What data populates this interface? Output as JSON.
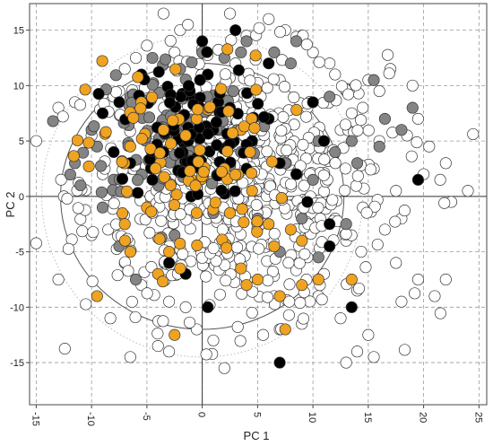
{
  "chart_data": {
    "type": "scatter",
    "title": "",
    "xlabel": "PC 1",
    "ylabel": "PC 2",
    "xlim": [
      -15.6,
      25.7
    ],
    "ylim": [
      -18.8,
      17.4
    ],
    "x_ticks": [
      -15,
      -10,
      -5,
      0,
      5,
      10,
      15,
      20,
      25
    ],
    "y_ticks": [
      -15,
      -10,
      -5,
      0,
      5,
      10,
      15
    ],
    "x_tick_labels": [
      "-15",
      "-10",
      "-5",
      "0",
      "5",
      "10",
      "15",
      "20",
      "25"
    ],
    "y_tick_labels": [
      "-15",
      "-10",
      "-5",
      "0",
      "5",
      "10",
      "15"
    ],
    "grid": true,
    "grid_style": "dashed",
    "reference_lines": {
      "x": 0,
      "y": 0
    },
    "confidence_ellipses": [
      {
        "center": [
          0,
          0
        ],
        "rx": 12.8,
        "ry": 12.0,
        "style": "solid",
        "color": "#555555"
      },
      {
        "center": [
          0,
          0
        ],
        "rx": 14.5,
        "ry": 14.5,
        "style": "dotted",
        "color": "#bbbbbb"
      }
    ],
    "series": [
      {
        "color": "#ffffff",
        "generator": "cloud",
        "count": 700,
        "center": [
          3.0,
          1.0
        ],
        "spread": [
          6.8,
          5.8
        ],
        "points": [
          [
            24.0,
            0.5
          ],
          [
            22.5,
            -0.5
          ],
          [
            21.5,
            1.5
          ],
          [
            20.5,
            4.5
          ],
          [
            20.0,
            2.0
          ],
          [
            22.0,
            3.0
          ],
          [
            19.5,
            7.0
          ],
          [
            18.5,
            5.5
          ],
          [
            19.5,
            -7.5
          ],
          [
            22.0,
            -7.5
          ],
          [
            21.0,
            -9.0
          ],
          [
            18.0,
            -9.5
          ],
          [
            17.5,
            -6.0
          ],
          [
            15.0,
            -12.5
          ],
          [
            14.0,
            -14.0
          ],
          [
            15.5,
            -14.5
          ],
          [
            13.0,
            -15.0
          ],
          [
            -15.0,
            5.0
          ],
          [
            -13.0,
            8.0
          ],
          [
            -11.5,
            8.5
          ],
          [
            -13.0,
            -7.5
          ],
          [
            -10.0,
            -3.5
          ],
          [
            -12.5,
            0.0
          ],
          [
            -4.0,
            -13.5
          ],
          [
            -3.0,
            -14.0
          ],
          [
            -6.5,
            -14.5
          ],
          [
            2.0,
            -15.5
          ],
          [
            9.0,
            14.5
          ],
          [
            7.5,
            15.0
          ],
          [
            -3.5,
            16.5
          ],
          [
            0.5,
            17.0
          ],
          [
            -2.0,
            15.0
          ],
          [
            12.0,
            11.0
          ],
          [
            11.5,
            12.0
          ],
          [
            10.0,
            13.0
          ],
          [
            19.0,
            10.0
          ],
          [
            16.0,
            9.5
          ],
          [
            15.0,
            10.5
          ],
          [
            17.0,
            11.5
          ],
          [
            13.5,
            7.5
          ],
          [
            14.5,
            8.0
          ],
          [
            12.0,
            -2.0
          ],
          [
            13.0,
            -4.0
          ],
          [
            11.0,
            -7.0
          ],
          [
            9.0,
            -11.5
          ],
          [
            7.0,
            -12.0
          ],
          [
            5.5,
            -12.5
          ],
          [
            4.5,
            -10.5
          ],
          [
            -1.5,
            -10.0
          ],
          [
            -3.0,
            -9.5
          ],
          [
            -5.5,
            -8.0
          ],
          [
            -7.0,
            -6.0
          ],
          [
            -8.5,
            -3.0
          ],
          [
            -9.0,
            2.0
          ],
          [
            -10.0,
            5.5
          ],
          [
            -8.0,
            9.0
          ],
          [
            6.0,
            16.0
          ],
          [
            2.5,
            16.5
          ],
          [
            4.0,
            14.5
          ],
          [
            16.5,
            -3.0
          ],
          [
            17.5,
            0.5
          ],
          [
            15.5,
            2.5
          ],
          [
            18.0,
            -2.0
          ],
          [
            14.0,
            -8.5
          ],
          [
            12.5,
            -11.0
          ],
          [
            10.5,
            -9.0
          ],
          [
            1.0,
            -13.0
          ],
          [
            -0.5,
            -12.0
          ],
          [
            6.5,
            -9.0
          ],
          [
            9.5,
            -5.5
          ],
          [
            11.5,
            4.0
          ],
          [
            12.5,
            6.0
          ],
          [
            9.5,
            8.0
          ],
          [
            3.0,
            12.0
          ],
          [
            -7.0,
            11.5
          ],
          [
            -6.0,
            12.5
          ],
          [
            -2.5,
            13.0
          ],
          [
            7.0,
            10.5
          ],
          [
            14.5,
            -1.0
          ],
          [
            16.0,
            5.0
          ]
        ]
      },
      {
        "color": "#848484",
        "generator": "cloud",
        "count": 130,
        "center": [
          -3.0,
          6.0
        ],
        "spread": [
          3.6,
          3.4
        ],
        "points": [
          [
            -11.0,
            1.0
          ],
          [
            -11.5,
            3.0
          ],
          [
            -9.5,
            4.5
          ],
          [
            -10.0,
            6.0
          ],
          [
            -8.0,
            1.5
          ],
          [
            -9.0,
            -1.0
          ],
          [
            -7.5,
            -4.5
          ],
          [
            -6.0,
            -7.5
          ],
          [
            -2.5,
            -3.5
          ],
          [
            1.0,
            -1.5
          ],
          [
            4.0,
            14.0
          ],
          [
            3.5,
            13.0
          ],
          [
            2.0,
            12.5
          ],
          [
            6.5,
            13.0
          ],
          [
            8.0,
            12.0
          ],
          [
            8.5,
            14.0
          ],
          [
            11.5,
            9.0
          ],
          [
            12.0,
            4.0
          ],
          [
            13.5,
            5.0
          ],
          [
            14.0,
            3.0
          ],
          [
            16.0,
            4.5
          ],
          [
            18.0,
            6.0
          ],
          [
            19.0,
            8.0
          ],
          [
            16.5,
            7.0
          ],
          [
            15.5,
            10.5
          ],
          [
            10.5,
            5.0
          ],
          [
            10.0,
            1.5
          ],
          [
            7.5,
            3.0
          ],
          [
            9.0,
            -2.0
          ],
          [
            10.5,
            -5.5
          ],
          [
            13.0,
            -2.5
          ],
          [
            7.0,
            -5.0
          ],
          [
            5.0,
            -2.0
          ],
          [
            3.5,
            4.0
          ],
          [
            5.5,
            7.0
          ],
          [
            1.5,
            9.0
          ],
          [
            -4.5,
            12.5
          ],
          [
            -2.0,
            11.5
          ],
          [
            0.0,
            13.0
          ],
          [
            -6.5,
            9.0
          ]
        ]
      },
      {
        "color": "#000000",
        "generator": "cloud",
        "count": 110,
        "center": [
          -1.5,
          6.0
        ],
        "spread": [
          3.0,
          3.0
        ],
        "points": [
          [
            7.0,
            -15.0
          ],
          [
            13.5,
            -10.0
          ],
          [
            19.5,
            1.5
          ],
          [
            9.5,
            -0.5
          ],
          [
            11.5,
            -2.5
          ],
          [
            11.5,
            -4.5
          ],
          [
            8.5,
            2.0
          ],
          [
            7.0,
            3.0
          ],
          [
            4.0,
            2.5
          ],
          [
            -1.5,
            -7.0
          ],
          [
            0.5,
            -10.0
          ],
          [
            -3.0,
            -6.0
          ],
          [
            -1.0,
            0.0
          ],
          [
            -4.5,
            1.5
          ],
          [
            -3.5,
            4.0
          ],
          [
            1.0,
            6.0
          ],
          [
            2.5,
            8.0
          ],
          [
            0.5,
            11.0
          ],
          [
            0.0,
            14.0
          ],
          [
            3.0,
            15.0
          ],
          [
            6.0,
            12.0
          ],
          [
            -5.5,
            11.0
          ],
          [
            -7.5,
            8.5
          ],
          [
            -9.0,
            7.5
          ],
          [
            -8.0,
            4.0
          ],
          [
            -6.5,
            3.0
          ],
          [
            4.5,
            5.0
          ],
          [
            6.0,
            7.0
          ],
          [
            10.0,
            8.5
          ],
          [
            11.0,
            5.0
          ]
        ]
      },
      {
        "color": "#F0A320",
        "generator": "cloud",
        "count": 110,
        "center": [
          -1.5,
          3.0
        ],
        "spread": [
          4.5,
          4.8
        ],
        "points": [
          [
            -9.5,
            -9.0
          ],
          [
            -2.5,
            -12.5
          ],
          [
            -4.0,
            -7.0
          ],
          [
            -2.0,
            -6.5
          ],
          [
            -6.5,
            -5.0
          ],
          [
            3.5,
            -6.5
          ],
          [
            5.0,
            -7.5
          ],
          [
            4.0,
            -8.0
          ],
          [
            7.5,
            -12.0
          ],
          [
            7.0,
            -9.0
          ],
          [
            10.5,
            -7.5
          ],
          [
            9.0,
            -8.0
          ],
          [
            13.5,
            -7.5
          ],
          [
            6.5,
            -4.5
          ],
          [
            8.0,
            -3.0
          ],
          [
            9.0,
            -4.0
          ],
          [
            6.0,
            -2.5
          ],
          [
            -3.0,
            -5.0
          ],
          [
            -7.0,
            -2.5
          ],
          [
            -5.0,
            -1.0
          ],
          [
            -0.5,
            -1.5
          ],
          [
            2.5,
            -1.5
          ],
          [
            4.5,
            0.5
          ],
          [
            -5.5,
            8.5
          ],
          [
            -6.5,
            4.5
          ],
          [
            -3.5,
            6.0
          ],
          [
            -1.5,
            5.5
          ],
          [
            -0.5,
            7.0
          ],
          [
            2.0,
            2.5
          ],
          [
            3.5,
            6.0
          ]
        ]
      }
    ]
  }
}
